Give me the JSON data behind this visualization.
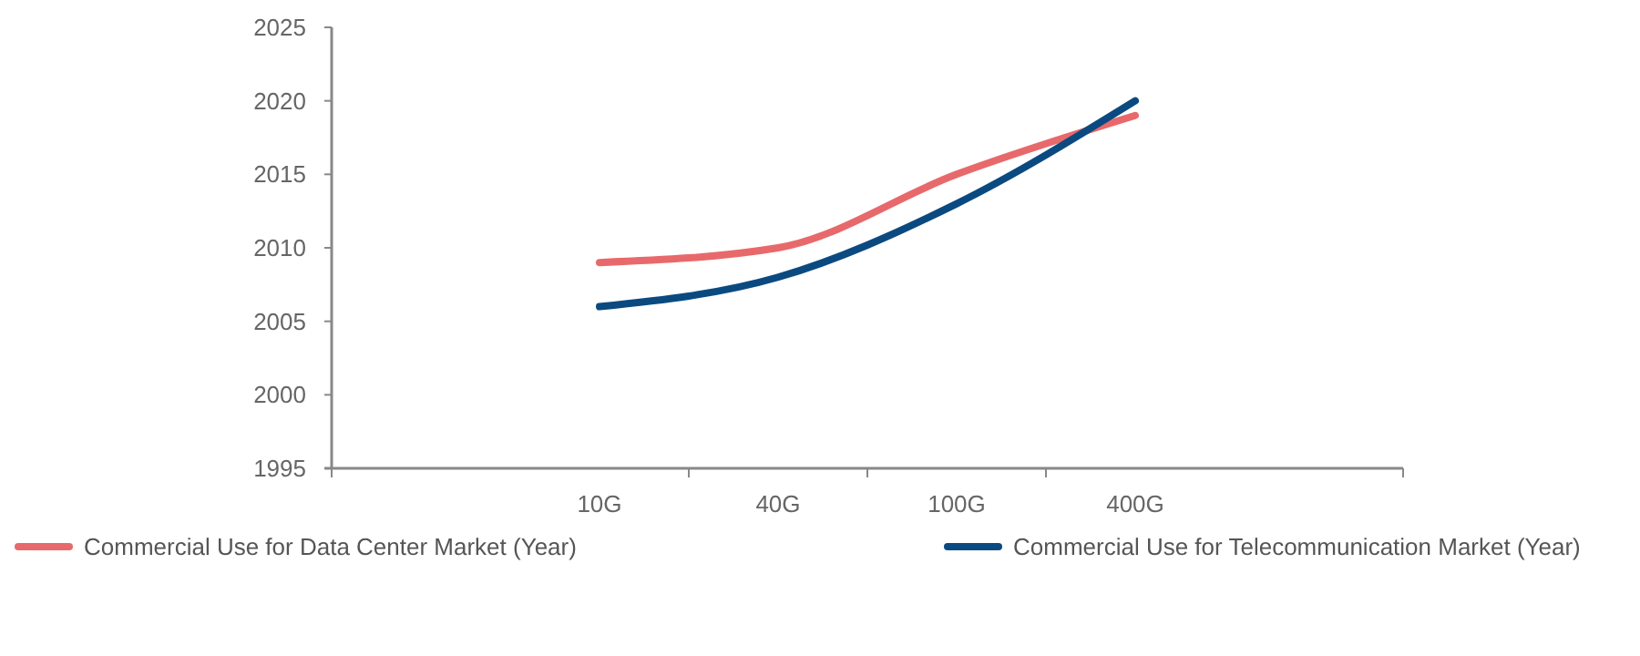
{
  "chart_data": {
    "type": "line",
    "categories": [
      null,
      "10G",
      "40G",
      "100G",
      "400G",
      null
    ],
    "series": [
      {
        "name": "Commercial Use for Data Center Market (Year)",
        "color": "#e8696b",
        "values": [
          null,
          2009,
          2010,
          2015,
          2019,
          null
        ]
      },
      {
        "name": "Commercial Use for Telecommunication Market (Year)",
        "color": "#0b4a80",
        "values": [
          null,
          2006,
          2008,
          2013,
          2020,
          null
        ]
      }
    ],
    "ylim": [
      1995,
      2025
    ],
    "yticks": [
      1995,
      2000,
      2005,
      2010,
      2015,
      2020,
      2025
    ],
    "grid": false,
    "legend": "bottom",
    "marker": "none",
    "line_style": "solid"
  }
}
